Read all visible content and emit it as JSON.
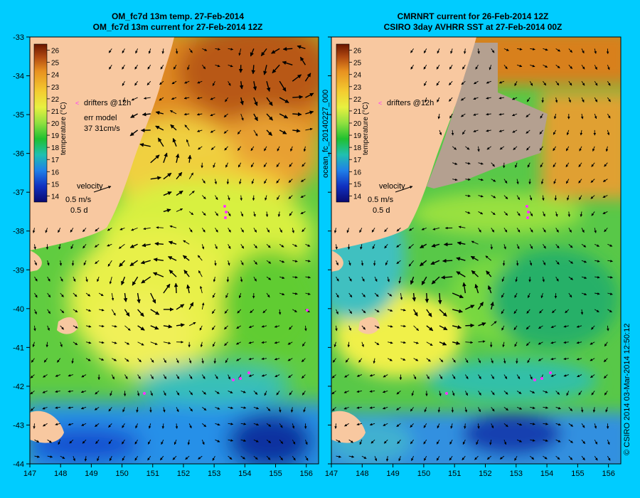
{
  "colors": {
    "background": "#00ccff",
    "land": "#f8c8a0",
    "cloud": "#b4a090",
    "drifter": "#ff33ff"
  },
  "titles": {
    "left_line1": "OM_fc7d 13m temp. 27-Feb-2014",
    "left_line2": "OM_fc7d 13m current for 27-Feb-2014 12Z",
    "right_line1": "CMRNRT current for 26-Feb-2014 12Z",
    "right_line2": "CSIRO 3day AVHRR SST at 27-Feb-2014 00Z"
  },
  "side_labels": {
    "run_id": "ocean_fc_20140227_000",
    "stamp": "© CSIRO 2014   03-Mar-2014 12:50:12"
  },
  "colorbar": {
    "label": "temperature (°C)",
    "ticks": [
      "26",
      "25",
      "24",
      "23",
      "22",
      "21",
      "20",
      "19",
      "18",
      "17",
      "16",
      "15",
      "14"
    ]
  },
  "legend_left": {
    "drifters": "drifters @12h",
    "err_model_line1": "err model",
    "err_model_line2": "37 31cm/s",
    "velocity": "velocity",
    "speed": "0.5 m/s",
    "duration": "0.5 d"
  },
  "legend_right": {
    "drifters": "drifters @12h",
    "velocity": "velocity",
    "speed": "0.5 m/s",
    "duration": "0.5 d"
  },
  "chart_data": [
    {
      "type": "heatmap",
      "panel": "left",
      "x": [
        147,
        148,
        149,
        150,
        151,
        152,
        153,
        154,
        155,
        156
      ],
      "y": [
        -33,
        -34,
        -35,
        -36,
        -37,
        -38,
        -39,
        -40,
        -41,
        -42,
        -43,
        -44
      ],
      "xlim": [
        147,
        156.4
      ],
      "ylim": [
        -44,
        -33
      ],
      "colorbar_range": [
        13.5,
        26.5
      ],
      "eddies": [
        {
          "lon": 155.2,
          "lat": -34.1,
          "sense": "anticyclonic"
        },
        {
          "lon": 150.8,
          "lat": -36.2,
          "sense": "anticyclonic"
        },
        {
          "lon": 151.1,
          "lat": -39.4,
          "sense": "anticyclonic"
        }
      ]
    },
    {
      "type": "heatmap",
      "panel": "right",
      "x": [
        147,
        148,
        149,
        150,
        151,
        152,
        153,
        154,
        155,
        156
      ],
      "y": [
        -33,
        -34,
        -35,
        -36,
        -37,
        -38,
        -39,
        -40,
        -41,
        -42,
        -43,
        -44
      ],
      "xlim": [
        147,
        156.4
      ],
      "ylim": [
        -44,
        -33
      ],
      "colorbar_range": [
        13.5,
        26.5
      ],
      "eddies": [
        {
          "lon": 150.9,
          "lat": -39.5,
          "sense": "anticyclonic"
        }
      ]
    }
  ]
}
